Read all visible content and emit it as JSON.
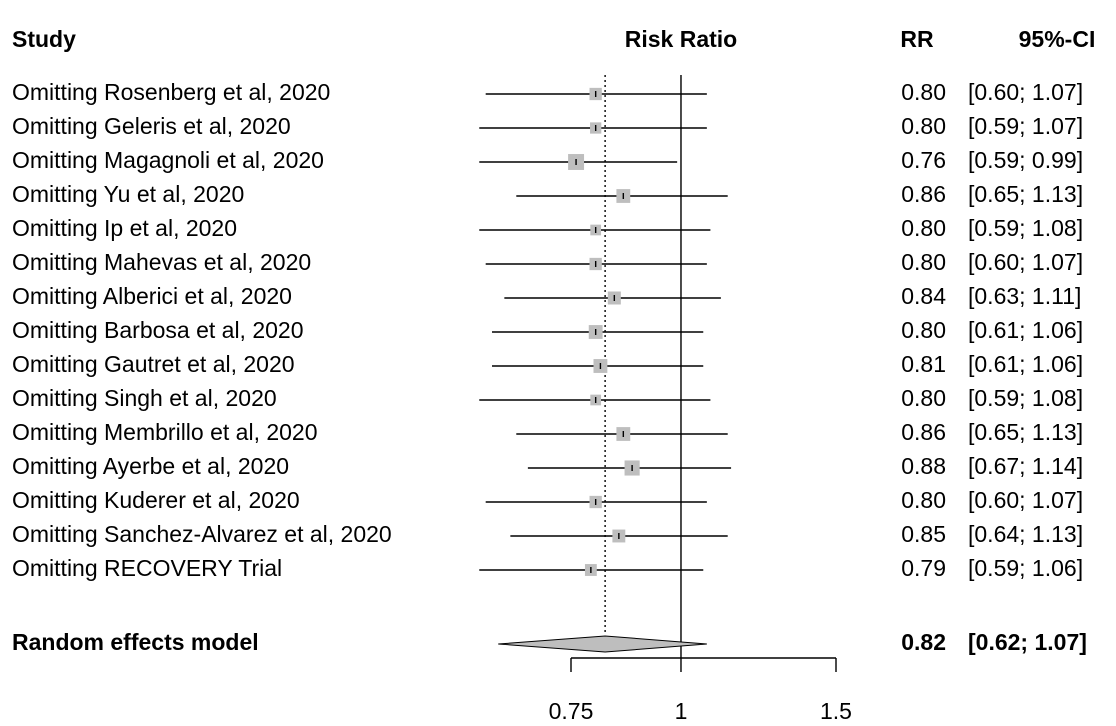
{
  "chart_data": {
    "type": "forest",
    "headers": {
      "study": "Study",
      "effect": "Risk Ratio",
      "rr": "RR",
      "ci": "95%-CI"
    },
    "x_scale": "log",
    "x_ticks": [
      0.75,
      1,
      1.5
    ],
    "x_tick_labels": [
      "0.75",
      "1",
      "1.5"
    ],
    "reference_line": 1,
    "studies": [
      {
        "label": "Omitting Rosenberg et al, 2020",
        "rr": 0.8,
        "lower": 0.6,
        "upper": 1.07,
        "rr_text": "0.80",
        "ci_text": "[0.60; 1.07]"
      },
      {
        "label": "Omitting Geleris et al, 2020",
        "rr": 0.8,
        "lower": 0.59,
        "upper": 1.07,
        "rr_text": "0.80",
        "ci_text": "[0.59; 1.07]"
      },
      {
        "label": "Omitting Magagnoli et al, 2020",
        "rr": 0.76,
        "lower": 0.59,
        "upper": 0.99,
        "rr_text": "0.76",
        "ci_text": "[0.59; 0.99]"
      },
      {
        "label": "Omitting Yu et al, 2020",
        "rr": 0.86,
        "lower": 0.65,
        "upper": 1.13,
        "rr_text": "0.86",
        "ci_text": "[0.65; 1.13]"
      },
      {
        "label": "Omitting Ip et al, 2020",
        "rr": 0.8,
        "lower": 0.59,
        "upper": 1.08,
        "rr_text": "0.80",
        "ci_text": "[0.59; 1.08]"
      },
      {
        "label": "Omitting Mahevas et al, 2020",
        "rr": 0.8,
        "lower": 0.6,
        "upper": 1.07,
        "rr_text": "0.80",
        "ci_text": "[0.60; 1.07]"
      },
      {
        "label": "Omitting Alberici et al, 2020",
        "rr": 0.84,
        "lower": 0.63,
        "upper": 1.11,
        "rr_text": "0.84",
        "ci_text": "[0.63; 1.11]"
      },
      {
        "label": "Omitting Barbosa et al, 2020",
        "rr": 0.8,
        "lower": 0.61,
        "upper": 1.06,
        "rr_text": "0.80",
        "ci_text": "[0.61; 1.06]"
      },
      {
        "label": "Omitting Gautret et al, 2020",
        "rr": 0.81,
        "lower": 0.61,
        "upper": 1.06,
        "rr_text": "0.81",
        "ci_text": "[0.61; 1.06]"
      },
      {
        "label": "Omitting Singh et al, 2020",
        "rr": 0.8,
        "lower": 0.59,
        "upper": 1.08,
        "rr_text": "0.80",
        "ci_text": "[0.59; 1.08]"
      },
      {
        "label": "Omitting Membrillo et al, 2020",
        "rr": 0.86,
        "lower": 0.65,
        "upper": 1.13,
        "rr_text": "0.86",
        "ci_text": "[0.65; 1.13]"
      },
      {
        "label": "Omitting Ayerbe et al, 2020",
        "rr": 0.88,
        "lower": 0.67,
        "upper": 1.14,
        "rr_text": "0.88",
        "ci_text": "[0.67; 1.14]"
      },
      {
        "label": "Omitting Kuderer et al, 2020",
        "rr": 0.8,
        "lower": 0.6,
        "upper": 1.07,
        "rr_text": "0.80",
        "ci_text": "[0.60; 1.07]"
      },
      {
        "label": "Omitting Sanchez-Alvarez et al, 2020",
        "rr": 0.85,
        "lower": 0.64,
        "upper": 1.13,
        "rr_text": "0.85",
        "ci_text": "[0.64; 1.13]"
      },
      {
        "label": "Omitting RECOVERY Trial",
        "rr": 0.79,
        "lower": 0.59,
        "upper": 1.06,
        "rr_text": "0.79",
        "ci_text": "[0.59; 1.06]"
      }
    ],
    "summary": {
      "label": "Random effects model",
      "rr": 0.82,
      "lower": 0.62,
      "upper": 1.07,
      "rr_text": "0.82",
      "ci_text": "[0.62; 1.07]"
    },
    "colors": {
      "box": "#bebebe",
      "diamond": "#bebebe",
      "line": "#000000"
    }
  }
}
